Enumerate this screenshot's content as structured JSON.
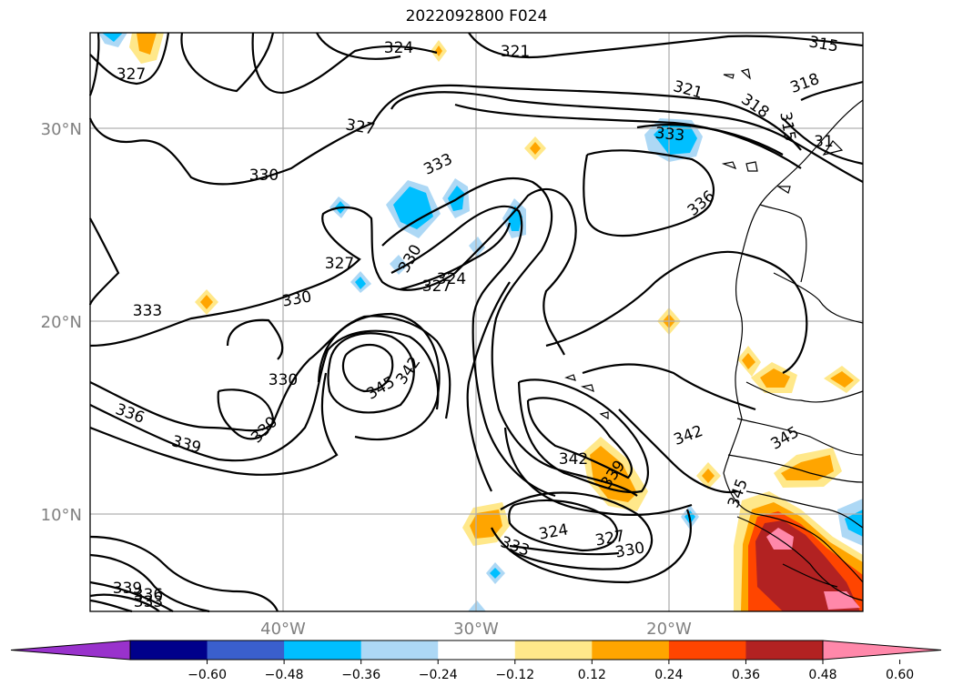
{
  "title": "2022092800 F024",
  "map": {
    "lat_labels": [
      "30°N",
      "20°N",
      "10°N"
    ],
    "lon_labels": [
      "40°W",
      "30°W",
      "20°W"
    ]
  },
  "colorbar": {
    "colors": [
      "#9932cc",
      "#00008b",
      "#3a5fcd",
      "#00bfff",
      "#add8f5",
      "#ffffff",
      "#ffe88a",
      "#ffa500",
      "#ff4500",
      "#b22222",
      "#ff88aa"
    ],
    "ticks": [
      "−0.60",
      "−0.48",
      "−0.36",
      "−0.24",
      "−0.12",
      "0.12",
      "0.24",
      "0.36",
      "0.48",
      "0.60"
    ]
  },
  "contour_labels": [
    {
      "text": "327"
    },
    {
      "text": "324"
    },
    {
      "text": "321"
    },
    {
      "text": "315"
    },
    {
      "text": "321"
    },
    {
      "text": "318"
    },
    {
      "text": "318"
    },
    {
      "text": "315"
    },
    {
      "text": "31"
    },
    {
      "text": "327"
    },
    {
      "text": "333"
    },
    {
      "text": "333"
    },
    {
      "text": "330"
    },
    {
      "text": "336"
    },
    {
      "text": "327"
    },
    {
      "text": "330"
    },
    {
      "text": "330"
    },
    {
      "text": "324"
    },
    {
      "text": "327"
    },
    {
      "text": "333"
    },
    {
      "text": "330"
    },
    {
      "text": "345"
    },
    {
      "text": "342"
    },
    {
      "text": "336"
    },
    {
      "text": "330"
    },
    {
      "text": "339"
    },
    {
      "text": "342"
    },
    {
      "text": "342"
    },
    {
      "text": "339"
    },
    {
      "text": "345"
    },
    {
      "text": "345"
    },
    {
      "text": "324"
    },
    {
      "text": "327"
    },
    {
      "text": "330"
    },
    {
      "text": "333"
    },
    {
      "text": "339"
    },
    {
      "text": "336"
    },
    {
      "text": "333"
    }
  ]
}
